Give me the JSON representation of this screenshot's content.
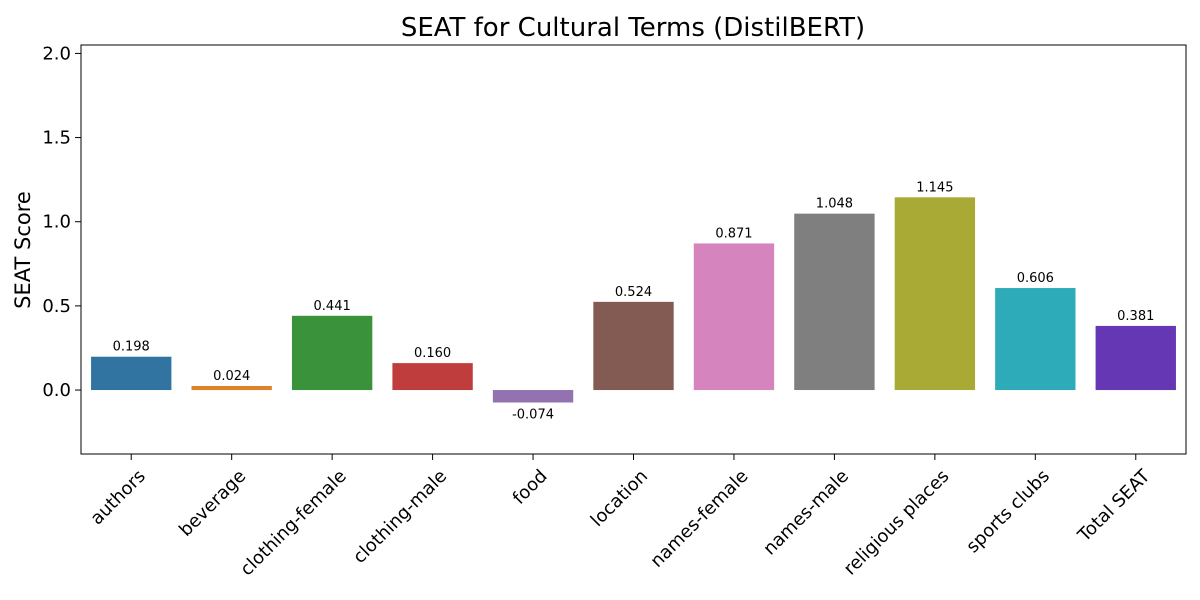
{
  "chart_data": {
    "type": "bar",
    "title": "SEAT for Cultural Terms (DistilBERT)",
    "xlabel": "",
    "ylabel": "SEAT Score",
    "ylim": [
      -0.38,
      2.05
    ],
    "yticks": [
      0.0,
      0.5,
      1.0,
      1.5,
      2.0
    ],
    "ytick_labels": [
      "0.0",
      "0.5",
      "1.0",
      "1.5",
      "2.0"
    ],
    "categories": [
      "authors",
      "beverage",
      "clothing-female",
      "clothing-male",
      "food",
      "location",
      "names-female",
      "names-male",
      "religious places",
      "sports clubs",
      "Total SEAT"
    ],
    "values": [
      0.198,
      0.024,
      0.441,
      0.16,
      -0.074,
      0.524,
      0.871,
      1.048,
      1.145,
      0.606,
      0.381
    ],
    "value_labels": [
      "0.198",
      "0.024",
      "0.441",
      "0.160",
      "-0.074",
      "0.524",
      "0.871",
      "1.048",
      "1.145",
      "0.606",
      "0.381"
    ],
    "colors": [
      "#3274a1",
      "#e1812c",
      "#3a923a",
      "#c03d3e",
      "#9372b2",
      "#845b53",
      "#d684bd",
      "#7f7f7f",
      "#a9aa35",
      "#2eabb8",
      "#6537b5"
    ],
    "grid": false,
    "legend": "none"
  }
}
